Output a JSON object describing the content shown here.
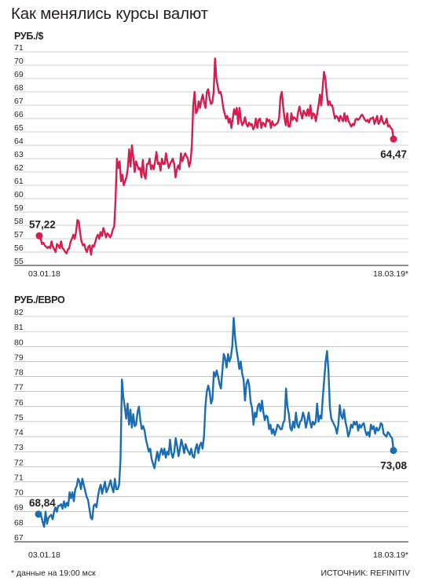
{
  "title": "Как менялись курсы валют",
  "footnote": "* данные на 19:00 мск",
  "source": "ИСТОЧНИК: REFINITIV",
  "colors": {
    "usd": "#d51d4f",
    "eur": "#1b6db3",
    "grid": "#9ea2a5",
    "axis": "#231f20"
  },
  "chart_data": [
    {
      "type": "line",
      "ylabel": "РУБ./$",
      "ylim": [
        55,
        71
      ],
      "yticks": [
        "55",
        "56",
        "57",
        "58",
        "59",
        "60",
        "61",
        "62",
        "63",
        "64",
        "65",
        "66",
        "67",
        "68",
        "69",
        "70",
        "71"
      ],
      "x_start_label": "03.01.18",
      "x_end_label": "18.03.19*",
      "start_value_label": "57,22",
      "end_value_label": "64,47",
      "series": [
        {
          "values": [
            57.22,
            57.0,
            56.6,
            56.7,
            56.5,
            56.4,
            56.3,
            56.4,
            56.3,
            56.8,
            56.4,
            56.2,
            56.0,
            56.6,
            56.5,
            56.3,
            56.8,
            56.3,
            56.2,
            56.0,
            55.9,
            56.2,
            56.3,
            56.8,
            57.0,
            57.3,
            57.0,
            57.5,
            58.4,
            58.3,
            57.4,
            56.8,
            56.5,
            56.6,
            56.2,
            56.0,
            56.4,
            56.5,
            55.8,
            56.5,
            56.4,
            56.7,
            57.1,
            57.3,
            57.0,
            57.5,
            57.2,
            57.8,
            57.5,
            57.1,
            57.4,
            57.3,
            57.1,
            57.3,
            57.7,
            57.9,
            60.0,
            63.0,
            62.3,
            62.8,
            61.3,
            61.8,
            61.0,
            61.3,
            61.6,
            62.3,
            63.7,
            62.4,
            64.0,
            63.1,
            62.0,
            62.8,
            62.5,
            62.2,
            62.3,
            61.6,
            62.9,
            61.8,
            61.5,
            62.6,
            62.6,
            63.0,
            62.2,
            62.5,
            62.2,
            62.8,
            63.5,
            62.6,
            62.7,
            62.1,
            63.0,
            62.6,
            62.6,
            63.4,
            62.8,
            62.3,
            62.6,
            62.8,
            63.0,
            62.6,
            61.6,
            62.2,
            62.5,
            62.2,
            63.4,
            62.8,
            63.1,
            63.4,
            63.2,
            63.0,
            62.4,
            62.8,
            64.0,
            67.0,
            68.0,
            66.4,
            66.6,
            67.3,
            66.8,
            67.4,
            67.8,
            67.2,
            66.8,
            68.0,
            68.2,
            67.5,
            67.1,
            67.2,
            68.0,
            70.5,
            69.0,
            68.4,
            67.9,
            68.0,
            67.6,
            66.8,
            66.4,
            66.0,
            66.2,
            65.7,
            66.0,
            65.3,
            66.0,
            66.7,
            66.3,
            66.8,
            65.6,
            66.8,
            65.9,
            65.5,
            65.7,
            66.1,
            65.6,
            65.4,
            65.7,
            65.5,
            65.6,
            65.2,
            65.4,
            66.0,
            65.3,
            65.9,
            66.0,
            65.3,
            65.7,
            65.6,
            65.4,
            66.0,
            65.8,
            65.9,
            65.3,
            65.8,
            65.5,
            65.5,
            65.6,
            65.7,
            66.0,
            67.6,
            68.0,
            66.9,
            66.0,
            65.5,
            66.4,
            65.4,
            65.4,
            66.4,
            65.9,
            66.1,
            66.0,
            65.8,
            66.5,
            66.9,
            66.4,
            66.0,
            66.6,
            66.4,
            66.2,
            66.7,
            66.2,
            67.0,
            66.0,
            66.4,
            66.3,
            65.8,
            66.4,
            67.0,
            67.8,
            67.0,
            68.3,
            69.5,
            69.0,
            67.8,
            67.0,
            67.3,
            67.0,
            67.0,
            66.5,
            66.0,
            66.2,
            66.1,
            65.8,
            66.2,
            66.0,
            65.8,
            66.4,
            65.8,
            66.2,
            65.8,
            65.6,
            65.4,
            65.6,
            65.5,
            65.9,
            66.0,
            65.9,
            66.0,
            66.2,
            66.3,
            66.1,
            65.9,
            65.8,
            65.9,
            65.7,
            66.0,
            66.0,
            66.1,
            65.6,
            65.9,
            66.2,
            65.6,
            65.8,
            66.2,
            65.8,
            65.6,
            65.7,
            66.0,
            65.4,
            65.5,
            65.3,
            65.2,
            64.47
          ]
        }
      ]
    },
    {
      "type": "line",
      "ylabel": "РУБ./ЕВРО",
      "ylim": [
        67,
        82
      ],
      "yticks": [
        "67",
        "68",
        "69",
        "70",
        "71",
        "72",
        "73",
        "74",
        "75",
        "76",
        "77",
        "78",
        "79",
        "80",
        "81",
        "82"
      ],
      "x_start_label": "03.01.18",
      "x_end_label": "18.03.19*",
      "start_value_label": "68,84",
      "end_value_label": "73,08",
      "series": [
        {
          "values": [
            68.84,
            68.9,
            68.7,
            68.3,
            68.0,
            69.0,
            68.2,
            68.6,
            68.7,
            68.8,
            68.5,
            69.0,
            69.3,
            69.0,
            69.4,
            69.4,
            69.5,
            69.2,
            69.7,
            69.3,
            69.6,
            69.4,
            70.3,
            69.9,
            70.3,
            69.7,
            70.5,
            70.7,
            71.2,
            71.0,
            70.5,
            71.2,
            70.8,
            70.4,
            70.0,
            69.8,
            69.2,
            68.6,
            68.5,
            69.4,
            69.5,
            69.3,
            70.0,
            70.5,
            70.8,
            70.2,
            70.6,
            71.0,
            70.3,
            70.5,
            70.8,
            71.1,
            70.6,
            70.3,
            71.2,
            70.5,
            70.5,
            70.8,
            72.5,
            77.8,
            76.6,
            76.0,
            75.2,
            76.2,
            74.8,
            75.8,
            74.6,
            75.5,
            74.7,
            74.8,
            75.6,
            76.0,
            75.1,
            74.5,
            74.7,
            74.4,
            73.8,
            73.4,
            73.0,
            73.2,
            72.5,
            72.2,
            71.9,
            72.5,
            73.0,
            72.4,
            72.9,
            73.2,
            72.8,
            73.2,
            72.6,
            73.0,
            72.8,
            73.8,
            72.9,
            72.6,
            73.0,
            73.9,
            73.4,
            72.7,
            73.2,
            73.8,
            73.4,
            72.9,
            73.5,
            73.2,
            73.0,
            72.8,
            73.2,
            72.7,
            72.6,
            73.2,
            73.5,
            72.9,
            73.4,
            73.6,
            73.2,
            74.0,
            76.0,
            77.0,
            77.4,
            77.0,
            76.2,
            76.5,
            78.3,
            78.0,
            78.4,
            78.0,
            77.5,
            77.2,
            78.4,
            79.5,
            79.2,
            78.6,
            79.5,
            79.0,
            79.3,
            80.0,
            81.9,
            80.6,
            79.8,
            79.2,
            78.5,
            79.0,
            78.2,
            77.8,
            76.4,
            77.5,
            77.8,
            77.4,
            76.3,
            75.9,
            74.8,
            75.6,
            75.3,
            76.0,
            76.2,
            75.7,
            76.4,
            75.6,
            75.1,
            75.4,
            75.3,
            74.5,
            74.8,
            74.2,
            74.5,
            74.1,
            74.4,
            74.8,
            74.7,
            74.5,
            74.5,
            74.9,
            75.1,
            77.2,
            76.0,
            75.5,
            74.6,
            74.4,
            75.0,
            74.6,
            75.6,
            74.8,
            74.6,
            75.0,
            75.1,
            75.6,
            75.3,
            74.6,
            75.0,
            75.6,
            75.0,
            74.6,
            75.0,
            74.8,
            75.0,
            76.2,
            75.0,
            75.4,
            75.2,
            76.6,
            77.8,
            79.0,
            79.7,
            78.4,
            76.0,
            75.2,
            75.0,
            74.8,
            74.6,
            74.2,
            74.8,
            76.1,
            75.4,
            75.2,
            75.8,
            75.0,
            74.6,
            74.0,
            74.3,
            74.8,
            74.6,
            75.0,
            74.8,
            75.0,
            74.4,
            74.8,
            74.6,
            74.8,
            74.9,
            74.4,
            74.1,
            74.3,
            74.0,
            74.8,
            74.5,
            74.7,
            74.2,
            74.6,
            74.4,
            74.5,
            74.9,
            74.8,
            74.2,
            74.1,
            74.0,
            74.3,
            74.2,
            74.0,
            73.9,
            73.08
          ]
        }
      ]
    }
  ]
}
